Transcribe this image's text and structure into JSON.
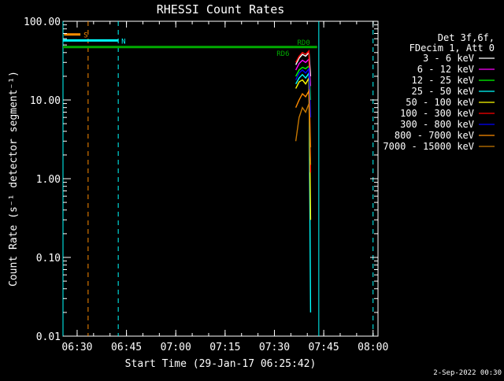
{
  "chart_data": {
    "type": "line",
    "title": "RHESSI Count Rates",
    "xlabel": "Start Time (29-Jan-17 06:25:42)",
    "ylabel": "Count Rate (s⁻¹ detector segment⁻¹)",
    "y_scale": "log",
    "ylim": [
      0.01,
      100
    ],
    "xlim_minutes": [
      "06:25:42",
      "08:01:30"
    ],
    "x_ticks": [
      "06:30",
      "06:45",
      "07:00",
      "07:15",
      "07:30",
      "07:45",
      "08:00"
    ],
    "y_ticks": [
      "0.01",
      "0.10",
      "1.00",
      "10.00",
      "100.00"
    ],
    "legend": {
      "placement": "right",
      "header": [
        "Det 3f,6f,",
        "FDecim 1, Att 0"
      ],
      "entries": [
        {
          "label": "3 - 6 keV",
          "color": "#ffffff"
        },
        {
          "label": "6 - 12 keV",
          "color": "#ff00ff"
        },
        {
          "label": "12 - 25 keV",
          "color": "#00ff00"
        },
        {
          "label": "25 - 50 keV",
          "color": "#00ffff"
        },
        {
          "label": "50 - 100 keV",
          "color": "#ffff00"
        },
        {
          "label": "100 - 300 keV",
          "color": "#ff0000"
        },
        {
          "label": "300 - 800 keV",
          "color": "#0000ff"
        },
        {
          "label": "800 - 7000 keV",
          "color": "#ff8c00"
        },
        {
          "label": "7000 - 15000 keV",
          "color": "#c87800"
        }
      ]
    },
    "annotations": [
      {
        "label": "S",
        "color": "#ff8c00",
        "y": 68,
        "x_start": "06:26:00",
        "x_end": "06:31:00"
      },
      {
        "label": "N",
        "color": "#00ffff",
        "y": 57,
        "x_start": "06:25:42",
        "x_end": "06:42:30"
      },
      {
        "label": "RD6",
        "color": "#00aa00",
        "y": 47,
        "x_start": "06:25:42",
        "x_end": "07:36:00"
      },
      {
        "label": "RD0",
        "color": "#00aa00",
        "y": 47,
        "x_start": "07:36:00",
        "x_end": "07:43:00"
      }
    ],
    "vlines": [
      {
        "time": "06:25:42",
        "color": "#00ffff",
        "style": "solid"
      },
      {
        "time": "06:33:20",
        "color": "#ff8c00",
        "style": "dashed"
      },
      {
        "time": "06:42:30",
        "color": "#00ffff",
        "style": "dashed"
      },
      {
        "time": "07:43:30",
        "color": "#00ffff",
        "style": "solid"
      },
      {
        "time": "08:00:00",
        "color": "#00ffff",
        "style": "dashed"
      }
    ],
    "series": [
      {
        "name": "3 - 6 keV",
        "color": "#ffffff",
        "x": [
          "07:36:30",
          "07:37:30",
          "07:38:30",
          "07:39:30",
          "07:40:30",
          "07:41:00"
        ],
        "y": [
          28,
          34,
          38,
          36,
          40,
          20
        ]
      },
      {
        "name": "6 - 12 keV",
        "color": "#ff00ff",
        "x": [
          "07:36:30",
          "07:37:30",
          "07:38:30",
          "07:39:30",
          "07:40:30",
          "07:41:00"
        ],
        "y": [
          24,
          29,
          32,
          30,
          33,
          15
        ]
      },
      {
        "name": "12 - 25 keV",
        "color": "#00ff00",
        "x": [
          "07:36:30",
          "07:37:30",
          "07:38:30",
          "07:39:30",
          "07:40:30",
          "07:41:00"
        ],
        "y": [
          20,
          24,
          26,
          25,
          27,
          10
        ]
      },
      {
        "name": "25 - 50 keV",
        "color": "#00ffff",
        "x": [
          "07:36:30",
          "07:37:30",
          "07:38:30",
          "07:39:30",
          "07:40:30",
          "07:41:00"
        ],
        "y": [
          16,
          19,
          21,
          19,
          22,
          0.02
        ]
      },
      {
        "name": "50 - 100 keV",
        "color": "#ffff00",
        "x": [
          "07:36:30",
          "07:37:30",
          "07:38:30",
          "07:39:30",
          "07:40:30",
          "07:41:00"
        ],
        "y": [
          14,
          17,
          18,
          16,
          19,
          0.3
        ]
      },
      {
        "name": "100 - 300 keV",
        "color": "#ff0000",
        "x": [
          "07:36:30",
          "07:37:30",
          "07:38:30",
          "07:39:30",
          "07:40:30",
          "07:41:00"
        ],
        "y": [
          30,
          36,
          40,
          38,
          42,
          1.2
        ]
      },
      {
        "name": "300 - 800 keV",
        "color": "#0000ff",
        "x": [
          "07:36:30",
          "07:37:30",
          "07:38:30",
          "07:39:30",
          "07:40:30",
          "07:41:00"
        ],
        "y": [
          18,
          22,
          24,
          22,
          25,
          6
        ]
      },
      {
        "name": "800 - 7000 keV",
        "color": "#ff8c00",
        "x": [
          "07:36:30",
          "07:37:30",
          "07:38:30",
          "07:39:30",
          "07:40:30",
          "07:41:00"
        ],
        "y": [
          8,
          10,
          12,
          11,
          13,
          2.5
        ]
      },
      {
        "name": "7000 - 15000 keV",
        "color": "#c87800",
        "x": [
          "07:36:30",
          "07:37:30",
          "07:38:30",
          "07:39:30",
          "07:40:30",
          "07:41:00"
        ],
        "y": [
          3,
          6,
          8,
          7,
          9,
          1.5
        ]
      }
    ]
  },
  "footer": {
    "date_stamp": "2-Sep-2022 00:30"
  }
}
